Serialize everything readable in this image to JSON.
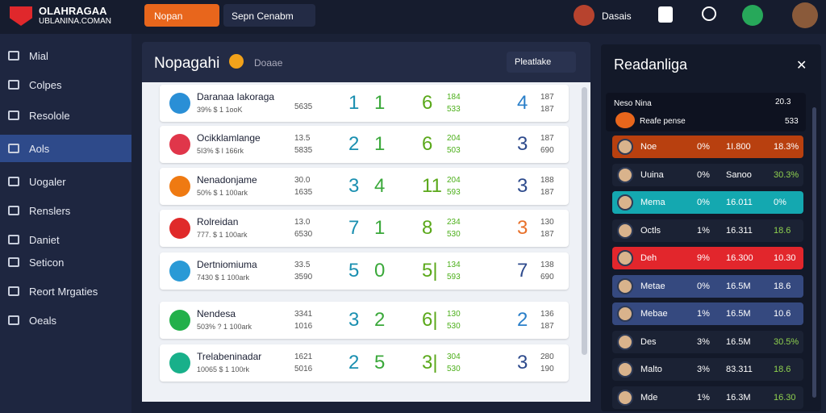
{
  "header": {
    "logo_line1": "OLAHRAGAA",
    "logo_line2": "UBLANINA.COMAN",
    "search_button": "Nopan",
    "search_select": "Sepn Cenabm",
    "user_label": "Dasais"
  },
  "sidebar": {
    "items": [
      "Mial",
      "Colpes",
      "Resolole",
      "Aols",
      "Uogaler",
      "Renslers",
      "Daniet",
      "Seticon",
      "Reort Mrgaties",
      "Oeals"
    ]
  },
  "main": {
    "title": "Nopagahi",
    "subtitle": "Doaae",
    "filter": "Pleatlake",
    "rows": [
      {
        "name": "Daranaa Iakoraga",
        "detail": "39% $ 1 1ooK",
        "stats": [
          "5635"
        ],
        "score_home": "1",
        "score_away": "1",
        "points": "6",
        "points_small": [
          "184",
          "533"
        ],
        "rank": "4",
        "rank_small": [
          "187",
          "187"
        ],
        "icon_color": "#2a8fd6",
        "rank_color": "#2a7fc9"
      },
      {
        "name": "Ocikklamlange",
        "detail": "5I3% $ I 166rk",
        "stats": [
          "13.5",
          "5835"
        ],
        "score_home": "2",
        "score_away": "1",
        "points": "6",
        "points_small": [
          "204",
          "503"
        ],
        "rank": "3",
        "rank_small": [
          "187",
          "690"
        ],
        "icon_color": "#e0364a",
        "rank_color": "#2d4a8c"
      },
      {
        "name": "Nenadonjame",
        "detail": "50% $ 1 100ark",
        "stats": [
          "30.0",
          "1635"
        ],
        "score_home": "3",
        "score_away": "4",
        "points": "11",
        "points_small": [
          "204",
          "593"
        ],
        "rank": "3",
        "rank_small": [
          "188",
          "187"
        ],
        "icon_color": "#ef7a12",
        "rank_color": "#2d4a8c"
      },
      {
        "name": "Rolreidan",
        "detail": "777. $ 1 100ark",
        "stats": [
          "13.0",
          "6530"
        ],
        "score_home": "7",
        "score_away": "1",
        "points": "8",
        "points_small": [
          "234",
          "530"
        ],
        "rank": "3",
        "rank_small": [
          "130",
          "187"
        ],
        "icon_color": "#e02a2a",
        "rank_color": "#e8702a"
      },
      {
        "name": "Dertniomiuma",
        "detail": "7430 $ 1 100ark",
        "stats": [
          "33.5",
          "3590"
        ],
        "score_home": "5",
        "score_away": "0",
        "points": "5|",
        "points_small": [
          "134",
          "593"
        ],
        "rank": "7",
        "rank_small": [
          "138",
          "690"
        ],
        "icon_color": "#2a9ad6",
        "rank_color": "#2d4a8c"
      },
      {
        "name": "Nendesa",
        "detail": "503% ? 1 100ark",
        "stats": [
          "3341",
          "1016"
        ],
        "score_home": "3",
        "score_away": "2",
        "points": "6|",
        "points_small": [
          "130",
          "530"
        ],
        "rank": "2",
        "rank_small": [
          "136",
          "187"
        ],
        "icon_color": "#22b04a",
        "rank_color": "#2a7fc9"
      },
      {
        "name": "Trelabeninadar",
        "detail": "10065 $ 1 100rk",
        "stats": [
          "1621",
          "5016"
        ],
        "score_home": "2",
        "score_away": "5",
        "points": "3|",
        "points_small": [
          "304",
          "530"
        ],
        "rank": "3",
        "rank_small": [
          "280",
          "190"
        ],
        "icon_color": "#18b08a",
        "rank_color": "#2d4a8c"
      }
    ]
  },
  "side_panel": {
    "title": "Readanliga",
    "head_name": "Neso Nina",
    "head_value": "20.3",
    "sub_name": "Reafe pense",
    "sub_value": "533",
    "rows": [
      {
        "name": "Noe",
        "a": "0%",
        "b": "1I.800",
        "c": "18.3%",
        "bg": "#b8400f"
      },
      {
        "name": "Uuina",
        "a": "0%",
        "b": "Sanoo",
        "c": "30.3%",
        "bg": "#1b2234"
      },
      {
        "name": "Mema",
        "a": "0%",
        "b": "16.011",
        "c": "0%",
        "bg": "#14a8b0"
      },
      {
        "name": "Octls",
        "a": "1%",
        "b": "16.311",
        "c": "18.6",
        "bg": "#1b2234"
      },
      {
        "name": "Deh",
        "a": "9%",
        "b": "16.300",
        "c": "10.30",
        "bg": "#e2262c"
      },
      {
        "name": "Metae",
        "a": "0%",
        "b": "16.5M",
        "c": "18.6",
        "bg": "#35497f"
      },
      {
        "name": "Mebae",
        "a": "1%",
        "b": "16.5M",
        "c": "10.6",
        "bg": "#35497f"
      },
      {
        "name": "Des",
        "a": "3%",
        "b": "16.5M",
        "c": "30.5%",
        "bg": "#1b2234"
      },
      {
        "name": "Malto",
        "a": "3%",
        "b": "83.311",
        "c": "18.6",
        "bg": "#1b2234"
      },
      {
        "name": "Mde",
        "a": "1%",
        "b": "16.3M",
        "c": "16.30",
        "bg": "#1b2234"
      }
    ]
  }
}
